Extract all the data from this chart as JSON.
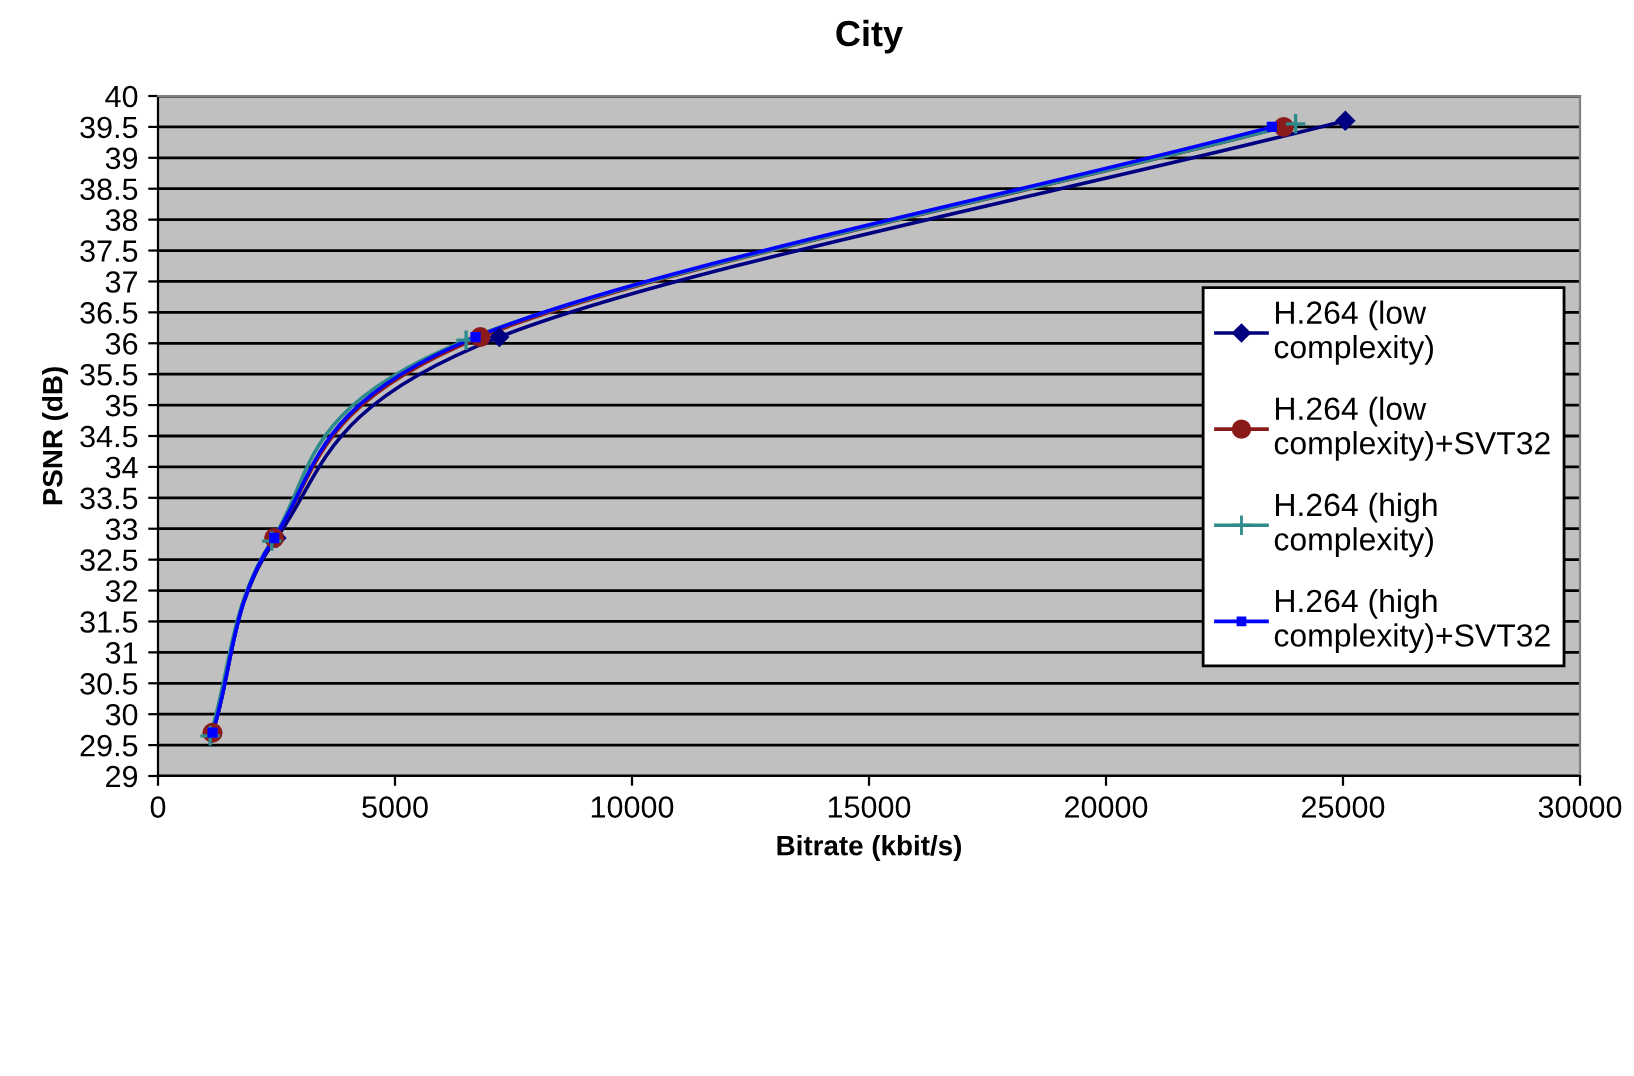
{
  "chart_data": {
    "type": "line",
    "title": "City",
    "xlabel": "Bitrate (kbit/s)",
    "ylabel": "PSNR (dB)",
    "xlim": [
      0,
      30000
    ],
    "xticks": [
      0,
      5000,
      10000,
      15000,
      20000,
      25000,
      30000
    ],
    "ylim": [
      29,
      40
    ],
    "yticks": [
      29,
      29.5,
      30,
      30.5,
      31,
      31.5,
      32,
      32.5,
      33,
      33.5,
      34,
      34.5,
      35,
      35.5,
      36,
      36.5,
      37,
      37.5,
      38,
      38.5,
      39,
      39.5,
      40
    ],
    "grid": "y",
    "legend": "right",
    "series": [
      {
        "name": "H.264 (low complexity)",
        "color": "#000080",
        "marker": "diamond",
        "x": [
          1150,
          2500,
          7200,
          25050
        ],
        "values": [
          29.7,
          32.85,
          36.1,
          39.6
        ]
      },
      {
        "name": "H.264 (low complexity)+SVT32",
        "color": "#8b1a1a",
        "marker": "circle",
        "x": [
          1150,
          2450,
          6800,
          23750
        ],
        "values": [
          29.7,
          32.85,
          36.1,
          39.5
        ]
      },
      {
        "name": "H.264 (high complexity)",
        "color": "#2e8b8b",
        "marker": "cross",
        "x": [
          1100,
          2400,
          6500,
          24000
        ],
        "values": [
          29.65,
          32.8,
          36.05,
          39.55
        ]
      },
      {
        "name": "H.264 (high complexity)+SVT32",
        "color": "#0000ff",
        "marker": "square",
        "x": [
          1150,
          2450,
          6700,
          23500
        ],
        "values": [
          29.7,
          32.85,
          36.1,
          39.5
        ]
      }
    ]
  }
}
